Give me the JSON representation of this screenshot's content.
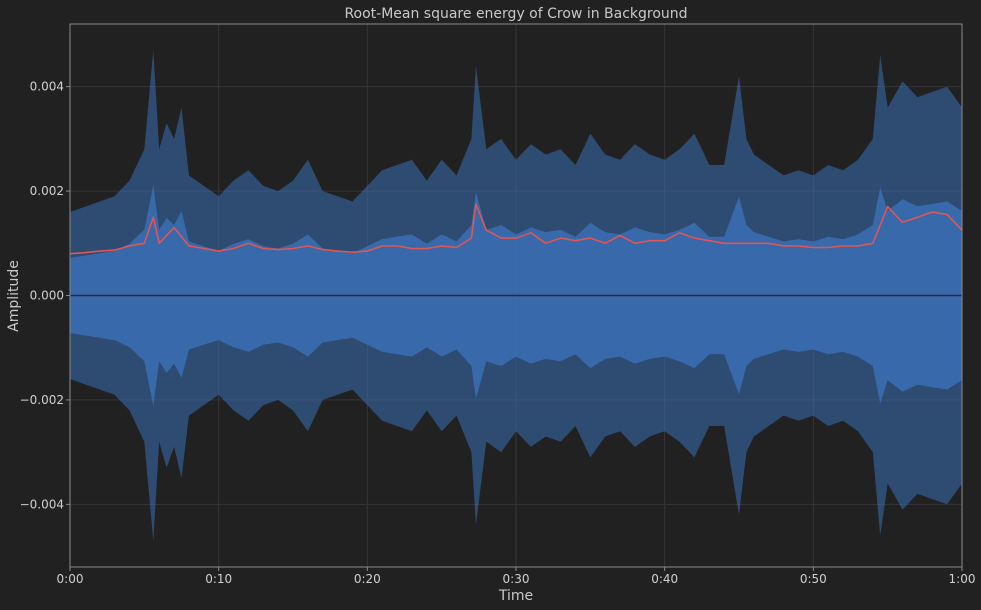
{
  "chart_data": {
    "type": "line",
    "title": "Root-Mean square energy of Crow in Background",
    "xlabel": "Time",
    "ylabel": "Amplitude",
    "xlim": [
      0,
      60
    ],
    "ylim": [
      -0.0052,
      0.0052
    ],
    "x_ticks": [
      {
        "value": 0,
        "label": "0:00"
      },
      {
        "value": 10,
        "label": "0:10"
      },
      {
        "value": 20,
        "label": "0:20"
      },
      {
        "value": 30,
        "label": "0:30"
      },
      {
        "value": 40,
        "label": "0:40"
      },
      {
        "value": 50,
        "label": "0:50"
      },
      {
        "value": 60,
        "label": "1:00"
      }
    ],
    "y_ticks": [
      {
        "value": 0.004,
        "label": "0.004"
      },
      {
        "value": 0.002,
        "label": "0.002"
      },
      {
        "value": 0.0,
        "label": "0.000"
      },
      {
        "value": -0.002,
        "label": "−0.002"
      },
      {
        "value": -0.004,
        "label": "−0.004"
      }
    ],
    "grid": true,
    "colors": {
      "background": "#212121",
      "waveform": "#3a6fb5",
      "rms": "#e05555",
      "grid": "#353535",
      "text": "#c8c8c8"
    },
    "series": [
      {
        "kind": "waveform",
        "x": [
          0,
          1,
          2,
          3,
          4,
          5,
          5.6,
          6,
          6.5,
          7,
          7.5,
          8,
          9,
          10,
          11,
          12,
          13,
          14,
          15,
          16,
          17,
          18,
          19,
          20,
          21,
          22,
          23,
          24,
          25,
          26,
          27,
          27.3,
          28,
          29,
          30,
          31,
          32,
          33,
          34,
          35,
          36,
          37,
          38,
          39,
          40,
          41,
          42,
          43,
          44,
          45,
          45.5,
          46,
          47,
          48,
          49,
          50,
          51,
          52,
          53,
          54,
          54.5,
          55,
          56,
          57,
          58,
          59,
          60
        ],
        "y_max": [
          0.0016,
          0.0017,
          0.0018,
          0.0019,
          0.0022,
          0.0028,
          0.0047,
          0.0028,
          0.0033,
          0.003,
          0.0036,
          0.0023,
          0.0021,
          0.0019,
          0.0022,
          0.0024,
          0.0021,
          0.002,
          0.0022,
          0.0026,
          0.002,
          0.0019,
          0.0018,
          0.0021,
          0.0024,
          0.0025,
          0.0026,
          0.0022,
          0.0026,
          0.0023,
          0.003,
          0.0044,
          0.0028,
          0.003,
          0.0026,
          0.0029,
          0.0027,
          0.0028,
          0.0025,
          0.0031,
          0.0027,
          0.0026,
          0.0029,
          0.0027,
          0.0026,
          0.0028,
          0.0031,
          0.0025,
          0.0025,
          0.0042,
          0.003,
          0.0027,
          0.0025,
          0.0023,
          0.0024,
          0.0023,
          0.0025,
          0.0024,
          0.0026,
          0.003,
          0.0046,
          0.0036,
          0.0041,
          0.0038,
          0.0039,
          0.004,
          0.0036
        ],
        "y_min": [
          -0.0016,
          -0.0017,
          -0.0018,
          -0.0019,
          -0.0022,
          -0.0028,
          -0.0047,
          -0.0028,
          -0.0033,
          -0.0029,
          -0.0035,
          -0.0023,
          -0.0021,
          -0.0019,
          -0.0022,
          -0.0024,
          -0.0021,
          -0.002,
          -0.0022,
          -0.0026,
          -0.002,
          -0.0019,
          -0.0018,
          -0.0021,
          -0.0024,
          -0.0025,
          -0.0026,
          -0.0022,
          -0.0026,
          -0.0023,
          -0.003,
          -0.0044,
          -0.0028,
          -0.003,
          -0.0026,
          -0.0029,
          -0.0027,
          -0.0028,
          -0.0025,
          -0.0031,
          -0.0027,
          -0.0026,
          -0.0029,
          -0.0027,
          -0.0026,
          -0.0028,
          -0.0031,
          -0.0025,
          -0.0025,
          -0.0042,
          -0.003,
          -0.0027,
          -0.0025,
          -0.0023,
          -0.0024,
          -0.0023,
          -0.0025,
          -0.0024,
          -0.0026,
          -0.003,
          -0.0046,
          -0.0036,
          -0.0041,
          -0.0038,
          -0.0039,
          -0.004,
          -0.0036
        ]
      },
      {
        "kind": "rms",
        "x": [
          0,
          1,
          2,
          3,
          4,
          5,
          5.6,
          6,
          7,
          8,
          9,
          10,
          11,
          12,
          13,
          14,
          15,
          16,
          17,
          18,
          19,
          20,
          21,
          22,
          23,
          24,
          25,
          26,
          27,
          27.3,
          28,
          29,
          30,
          31,
          32,
          33,
          34,
          35,
          36,
          37,
          38,
          39,
          40,
          41,
          42,
          43,
          44,
          45,
          46,
          47,
          48,
          49,
          50,
          51,
          52,
          53,
          54,
          55,
          56,
          57,
          58,
          59,
          60
        ],
        "y": [
          0.0008,
          0.00082,
          0.00085,
          0.00087,
          0.00095,
          0.001,
          0.0015,
          0.001,
          0.0013,
          0.00095,
          0.0009,
          0.00085,
          0.0009,
          0.001,
          0.0009,
          0.00088,
          0.0009,
          0.00095,
          0.00088,
          0.00085,
          0.00083,
          0.00085,
          0.00095,
          0.00095,
          0.0009,
          0.0009,
          0.00095,
          0.00092,
          0.0011,
          0.00175,
          0.00125,
          0.0011,
          0.0011,
          0.0012,
          0.001,
          0.0011,
          0.00105,
          0.0011,
          0.001,
          0.00115,
          0.001,
          0.00105,
          0.00105,
          0.0012,
          0.0011,
          0.00105,
          0.001,
          0.001,
          0.001,
          0.001,
          0.00095,
          0.00095,
          0.00092,
          0.00092,
          0.00095,
          0.00095,
          0.001,
          0.0017,
          0.0014,
          0.0015,
          0.0016,
          0.00155,
          0.00125
        ]
      }
    ]
  }
}
